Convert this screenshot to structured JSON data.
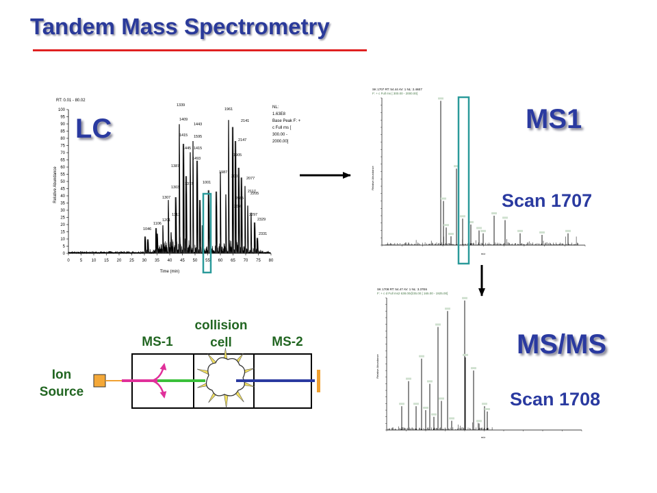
{
  "slide": {
    "title": "Tandem Mass Spectrometry",
    "colors": {
      "title": "#2a3a9a",
      "rule": "#e02020",
      "box_highlight": "#2a9a9a",
      "label_green": "#226622"
    }
  },
  "lc": {
    "label": "LC",
    "header": "RT: 0.01 - 80.02",
    "info": [
      "NL:",
      "1.63E8",
      "Base Peak F: +",
      "c Full ms [",
      "300.00 -",
      "2000.00]"
    ],
    "ylabel": "Relative Abundance",
    "xlabel": "Time (min)",
    "yticks": [
      "100",
      "95",
      "90",
      "85",
      "80",
      "75",
      "70",
      "65",
      "60",
      "55",
      "50",
      "45",
      "40",
      "35",
      "30",
      "25",
      "20",
      "15",
      "10",
      "5",
      "0"
    ],
    "xticks": [
      "0",
      "5",
      "10",
      "15",
      "20",
      "25",
      "30",
      "35",
      "40",
      "45",
      "50",
      "55",
      "60",
      "65",
      "70",
      "75",
      "80"
    ],
    "peak_labels": [
      "1339",
      "1409",
      "1415",
      "1443",
      "1387",
      "1445",
      "1001",
      "1303",
      "1307",
      "1313",
      "1201",
      "1415",
      "1493",
      "1595",
      "1961",
      "2141",
      "2147",
      "1905",
      "1987",
      "2001",
      "2085",
      "2045",
      "2077",
      "2117",
      "2205",
      "2297",
      "2329",
      "2331",
      "1046",
      "1106",
      "1377"
    ]
  },
  "ms1": {
    "label": "MS1",
    "scan": "Scan 1707",
    "header": [
      "SK 1707 RT: 54.44 AV: 1 NL: 2.46E7",
      "F: + c Full ms [ 300.00 - 2000.00]"
    ],
    "ylabel": "Relative Abundance",
    "xlabel": "m/z"
  },
  "msms": {
    "label": "MS/MS",
    "scan": "Scan 1708",
    "header": [
      "SK 1708 RT: 54.47 AV: 1 NL: 3.37E6",
      "F: + c d Full ms2 638.00@35.00 [ 165.00 - 1925.00]"
    ],
    "ylabel": "Relative Abundance",
    "xlabel": "m/z"
  },
  "instrument": {
    "ion_source": [
      "Ion",
      "Source"
    ],
    "ms1": "MS-1",
    "collision_cell": [
      "collision",
      "cell"
    ],
    "ms2": "MS-2"
  }
}
